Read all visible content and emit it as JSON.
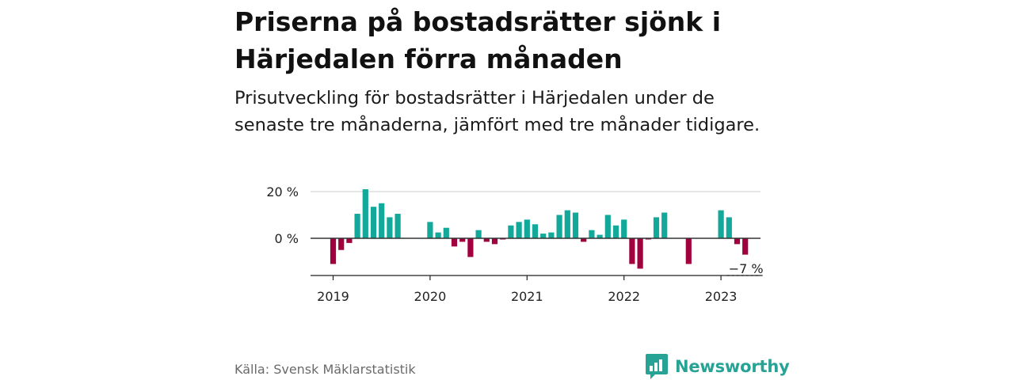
{
  "title": "Priserna på bostadsrätter sjönk i Härjedalen förra månaden",
  "subtitle": "Prisutveckling för bostadsrätter i Härjedalen under de senaste tre månaderna, jämfört med tre månader tidigare.",
  "source": "Källa: Svensk Mäklarstatistik",
  "brand": {
    "name": "Newsworthy",
    "color": "#26a394",
    "icon": "newsworthy-logo-icon"
  },
  "colors": {
    "positive": "#12a89a",
    "negative": "#a0003e",
    "grid": "#dddddd",
    "zero_line": "#333333",
    "axis": "#222222"
  },
  "chart_data": {
    "type": "bar",
    "unit": "%",
    "y_ticks": [
      {
        "value": 20,
        "label": "20 %"
      },
      {
        "value": 0,
        "label": "0 %"
      }
    ],
    "x_ticks": [
      "2019",
      "2020",
      "2021",
      "2022",
      "2023"
    ],
    "ylim": [
      -15,
      21
    ],
    "grid": true,
    "annotation": {
      "label": "−7 %",
      "value": -7
    },
    "categories": [
      "2019-01",
      "2019-02",
      "2019-03",
      "2019-04",
      "2019-05",
      "2019-06",
      "2019-07",
      "2019-08",
      "2019-09",
      "2019-10",
      "2019-11",
      "2019-12",
      "2020-01",
      "2020-02",
      "2020-03",
      "2020-04",
      "2020-05",
      "2020-06",
      "2020-07",
      "2020-08",
      "2020-09",
      "2020-10",
      "2020-11",
      "2020-12",
      "2021-01",
      "2021-02",
      "2021-03",
      "2021-04",
      "2021-05",
      "2021-06",
      "2021-07",
      "2021-08",
      "2021-09",
      "2021-10",
      "2021-11",
      "2021-12",
      "2022-01",
      "2022-02",
      "2022-03",
      "2022-04",
      "2022-05",
      "2022-06",
      "2022-07",
      "2022-08",
      "2022-09",
      "2022-10",
      "2022-11",
      "2022-12",
      "2023-01",
      "2023-02",
      "2023-03",
      "2023-04"
    ],
    "values": [
      -11,
      -5,
      -2,
      10.5,
      21,
      13.5,
      15,
      9,
      10.5,
      null,
      null,
      null,
      7,
      2.5,
      4.5,
      -3.5,
      -1.5,
      -8,
      3.5,
      -1.5,
      -2.5,
      -0.5,
      5.5,
      7,
      8,
      6,
      2,
      2.5,
      10,
      12,
      11,
      -1.5,
      3.5,
      1.5,
      10,
      5.5,
      8,
      -11,
      -13,
      -0.5,
      9,
      11,
      null,
      null,
      -11,
      null,
      null,
      null,
      12,
      9,
      -2.5,
      -7
    ]
  }
}
